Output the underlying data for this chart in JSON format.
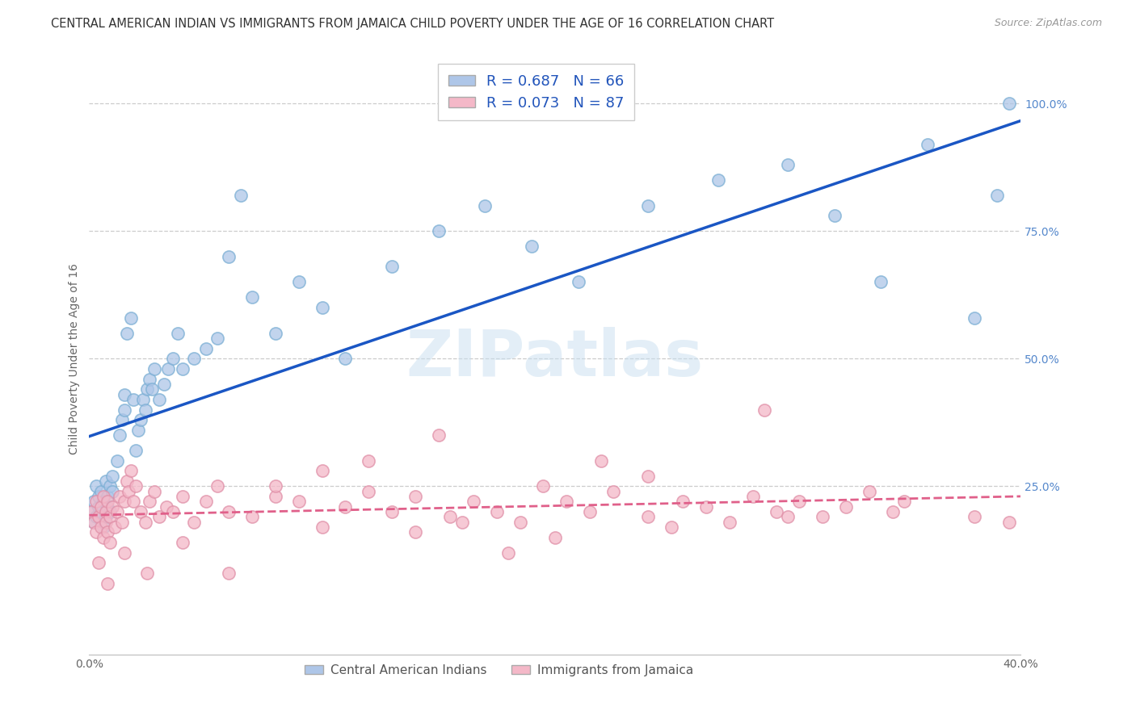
{
  "title": "CENTRAL AMERICAN INDIAN VS IMMIGRANTS FROM JAMAICA CHILD POVERTY UNDER THE AGE OF 16 CORRELATION CHART",
  "source": "Source: ZipAtlas.com",
  "ylabel": "Child Poverty Under the Age of 16",
  "watermark": "ZIPatlas",
  "legend_label1": "R = 0.687   N = 66",
  "legend_label2": "R = 0.073   N = 87",
  "legend_bottom1": "Central American Indians",
  "legend_bottom2": "Immigrants from Jamaica",
  "color_blue": "#aec6e8",
  "color_pink": "#f4b8c8",
  "color_line_blue": "#1a56c4",
  "color_line_pink": "#e0608a",
  "ylabel_right_vals": [
    0.0,
    0.25,
    0.5,
    0.75,
    1.0
  ],
  "ylabel_right_labels": [
    "",
    "25.0%",
    "50.0%",
    "75.0%",
    "100.0%"
  ],
  "xmin": 0.0,
  "xmax": 0.4,
  "ymin": -0.08,
  "ymax": 1.08,
  "title_fontsize": 10.5,
  "axis_fontsize": 10,
  "tick_fontsize": 10,
  "blue_x": [
    0.001,
    0.002,
    0.002,
    0.003,
    0.003,
    0.004,
    0.004,
    0.005,
    0.005,
    0.006,
    0.006,
    0.007,
    0.007,
    0.008,
    0.008,
    0.009,
    0.009,
    0.01,
    0.01,
    0.012,
    0.013,
    0.014,
    0.015,
    0.015,
    0.016,
    0.018,
    0.019,
    0.02,
    0.021,
    0.022,
    0.023,
    0.024,
    0.025,
    0.026,
    0.027,
    0.028,
    0.03,
    0.032,
    0.034,
    0.036,
    0.038,
    0.04,
    0.045,
    0.05,
    0.055,
    0.06,
    0.065,
    0.07,
    0.08,
    0.09,
    0.1,
    0.11,
    0.13,
    0.15,
    0.17,
    0.19,
    0.21,
    0.24,
    0.27,
    0.3,
    0.32,
    0.34,
    0.36,
    0.38,
    0.39,
    0.395
  ],
  "blue_y": [
    0.2,
    0.22,
    0.18,
    0.25,
    0.19,
    0.21,
    0.23,
    0.2,
    0.24,
    0.22,
    0.17,
    0.26,
    0.19,
    0.23,
    0.21,
    0.2,
    0.25,
    0.27,
    0.24,
    0.3,
    0.35,
    0.38,
    0.43,
    0.4,
    0.55,
    0.58,
    0.42,
    0.32,
    0.36,
    0.38,
    0.42,
    0.4,
    0.44,
    0.46,
    0.44,
    0.48,
    0.42,
    0.45,
    0.48,
    0.5,
    0.55,
    0.48,
    0.5,
    0.52,
    0.54,
    0.7,
    0.82,
    0.62,
    0.55,
    0.65,
    0.6,
    0.5,
    0.68,
    0.75,
    0.8,
    0.72,
    0.65,
    0.8,
    0.85,
    0.88,
    0.78,
    0.65,
    0.92,
    0.58,
    0.82,
    1.0
  ],
  "pink_x": [
    0.001,
    0.002,
    0.003,
    0.003,
    0.004,
    0.005,
    0.005,
    0.006,
    0.006,
    0.007,
    0.007,
    0.008,
    0.008,
    0.009,
    0.009,
    0.01,
    0.011,
    0.012,
    0.013,
    0.014,
    0.015,
    0.016,
    0.017,
    0.018,
    0.019,
    0.02,
    0.022,
    0.024,
    0.026,
    0.028,
    0.03,
    0.033,
    0.036,
    0.04,
    0.045,
    0.05,
    0.055,
    0.06,
    0.07,
    0.08,
    0.09,
    0.1,
    0.11,
    0.12,
    0.13,
    0.14,
    0.155,
    0.165,
    0.175,
    0.185,
    0.195,
    0.205,
    0.215,
    0.225,
    0.24,
    0.255,
    0.265,
    0.275,
    0.285,
    0.295,
    0.305,
    0.315,
    0.325,
    0.335,
    0.345,
    0.29,
    0.18,
    0.12,
    0.06,
    0.04,
    0.025,
    0.015,
    0.008,
    0.004,
    0.2,
    0.25,
    0.3,
    0.35,
    0.38,
    0.395,
    0.15,
    0.1,
    0.08,
    0.14,
    0.16,
    0.22,
    0.24
  ],
  "pink_y": [
    0.2,
    0.18,
    0.22,
    0.16,
    0.19,
    0.21,
    0.17,
    0.23,
    0.15,
    0.2,
    0.18,
    0.16,
    0.22,
    0.19,
    0.14,
    0.21,
    0.17,
    0.2,
    0.23,
    0.18,
    0.22,
    0.26,
    0.24,
    0.28,
    0.22,
    0.25,
    0.2,
    0.18,
    0.22,
    0.24,
    0.19,
    0.21,
    0.2,
    0.23,
    0.18,
    0.22,
    0.25,
    0.2,
    0.19,
    0.23,
    0.22,
    0.17,
    0.21,
    0.24,
    0.2,
    0.23,
    0.19,
    0.22,
    0.2,
    0.18,
    0.25,
    0.22,
    0.2,
    0.24,
    0.19,
    0.22,
    0.21,
    0.18,
    0.23,
    0.2,
    0.22,
    0.19,
    0.21,
    0.24,
    0.2,
    0.4,
    0.12,
    0.3,
    0.08,
    0.14,
    0.08,
    0.12,
    0.06,
    0.1,
    0.15,
    0.17,
    0.19,
    0.22,
    0.19,
    0.18,
    0.35,
    0.28,
    0.25,
    0.16,
    0.18,
    0.3,
    0.27
  ]
}
